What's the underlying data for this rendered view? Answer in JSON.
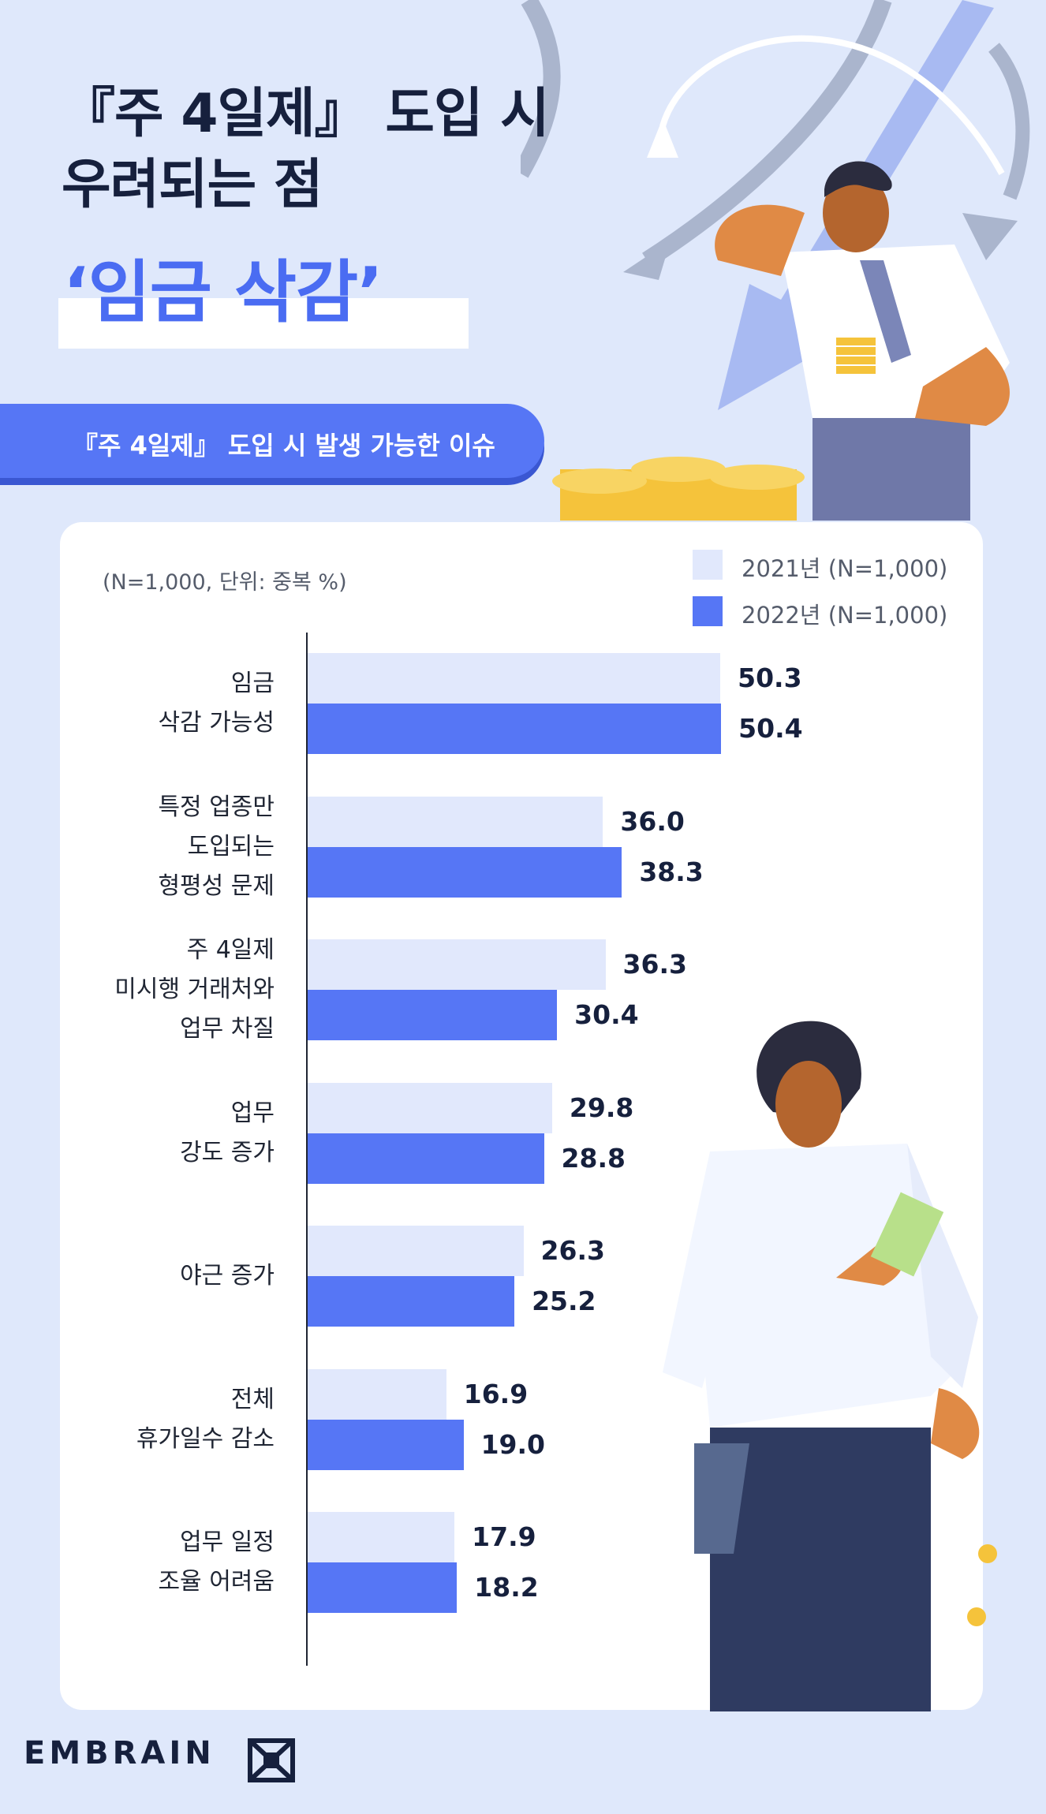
{
  "header": {
    "title_line1": "『주 4일제』 도입 시",
    "title_line2": "우려되는 점",
    "title_highlight": "‘임금 삭감’"
  },
  "subtitle": "『주 4일제』 도입 시 발생 가능한 이슈",
  "chart_data": {
    "type": "bar",
    "orientation": "horizontal",
    "note": "(N=1,000, 단위: 중복 %)",
    "categories": [
      "임금\n삭감 가능성",
      "특정 업종만\n도입되는\n형평성 문제",
      "주 4일제\n미시행 거래처와\n업무 차질",
      "업무\n강도 증가",
      "야근 증가",
      "전체\n휴가일수 감소",
      "업무 일정\n조율 어려움"
    ],
    "series": [
      {
        "name": "2021년 (N=1,000)",
        "color": "#e1e8fc",
        "values": [
          50.3,
          36.0,
          36.3,
          29.8,
          26.3,
          16.9,
          17.9
        ]
      },
      {
        "name": "2022년 (N=1,000)",
        "color": "#5676f5",
        "values": [
          50.4,
          38.3,
          30.4,
          28.8,
          25.2,
          19.0,
          18.2
        ]
      }
    ],
    "value_labels": [
      [
        "50.3",
        "36.0",
        "36.3",
        "29.8",
        "26.3",
        "16.9",
        "17.9"
      ],
      [
        "50.4",
        "38.3",
        "30.4",
        "28.8",
        "25.2",
        "19.0",
        "18.2"
      ]
    ],
    "xlim": [
      0,
      100
    ],
    "grid": false,
    "legend_position": "top-right"
  },
  "brand": {
    "logo_text": "EMBRAIN"
  },
  "colors": {
    "background": "#dfe8fb",
    "accent": "#5676f5",
    "title": "#16203d",
    "bar_2021": "#e1e8fc",
    "bar_2022": "#5676f5"
  },
  "illustrations": [
    "worried-man-with-coins",
    "man-with-empty-pocket",
    "falling-arrows",
    "coin-stack"
  ]
}
